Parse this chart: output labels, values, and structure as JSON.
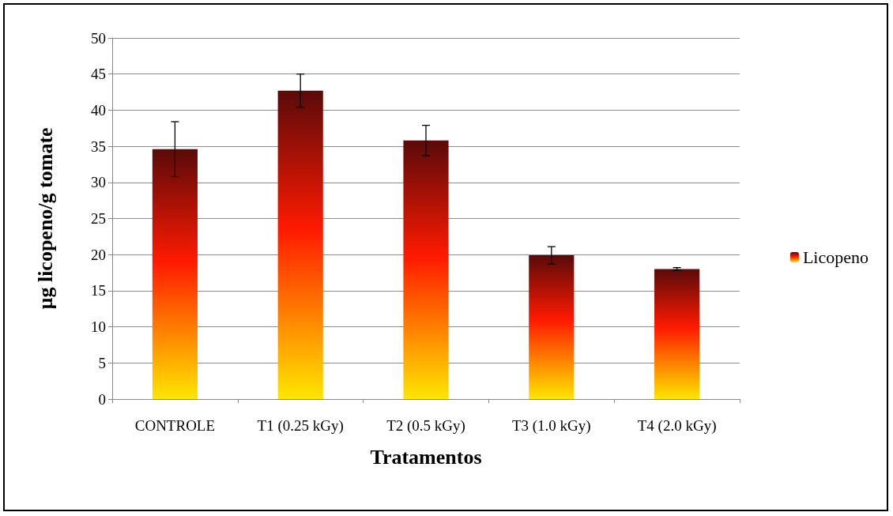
{
  "chart_data": {
    "type": "bar",
    "xlabel": "Tratamentos",
    "ylabel": "µg licopeno/g tomate",
    "categories": [
      "CONTROLE",
      "T1 (0.25 kGy)",
      "T2 (0.5 kGy)",
      "T3 (1.0 kGy)",
      "T4 (2.0 kGy)"
    ],
    "series": [
      {
        "name": "Licopeno",
        "color": "#ff1a00",
        "values": [
          34.6,
          42.7,
          35.8,
          19.9,
          18.0
        ],
        "errors": [
          3.8,
          2.3,
          2.1,
          1.2,
          0.2
        ]
      }
    ],
    "ylim": [
      0,
      50
    ],
    "yticks": [
      0,
      5,
      10,
      15,
      20,
      25,
      30,
      35,
      40,
      45,
      50
    ],
    "grid": "y",
    "legend": "right"
  }
}
